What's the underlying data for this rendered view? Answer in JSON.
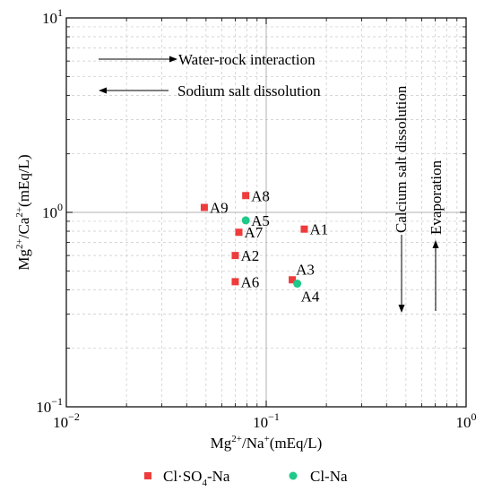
{
  "chart_data": {
    "type": "scatter",
    "x_scale": "log",
    "y_scale": "log",
    "xlim": [
      0.01,
      1
    ],
    "ylim": [
      0.1,
      10
    ],
    "x_ticks": [
      {
        "value": 0.01,
        "base": "10",
        "exp": "−2"
      },
      {
        "value": 0.1,
        "base": "10",
        "exp": "−1"
      },
      {
        "value": 1,
        "base": "10",
        "exp": "0"
      }
    ],
    "y_ticks": [
      {
        "value": 0.1,
        "base": "10",
        "exp": "−1"
      },
      {
        "value": 1,
        "base": "10",
        "exp": "0"
      },
      {
        "value": 10,
        "base": "10",
        "exp": "1"
      }
    ],
    "xlabel": {
      "pre": "Mg",
      "sup1": "2+",
      "mid": "/Na",
      "sup2": "+",
      "post": "(mEq/L)"
    },
    "ylabel": {
      "pre": "Mg",
      "sup1": "2+",
      "mid": "/Ca",
      "sup2": "2+",
      "post": "(mEq/L)"
    },
    "grid": true,
    "reference_lines": {
      "x": 0.1,
      "y": 1
    },
    "series": [
      {
        "name": "Cl·SO4-Na",
        "legend_parts": {
          "main": "Cl·SO",
          "sub": "4",
          "post": "-Na"
        },
        "marker": "square",
        "color": "#ee3b3b",
        "points": [
          {
            "label": "A1",
            "x": 0.155,
            "y": 0.82
          },
          {
            "label": "A2",
            "x": 0.07,
            "y": 0.6
          },
          {
            "label": "A3",
            "x": 0.135,
            "y": 0.45
          },
          {
            "label": "A6",
            "x": 0.07,
            "y": 0.44
          },
          {
            "label": "A7",
            "x": 0.073,
            "y": 0.79
          },
          {
            "label": "A8",
            "x": 0.079,
            "y": 1.22
          },
          {
            "label": "A9",
            "x": 0.049,
            "y": 1.06
          }
        ]
      },
      {
        "name": "Cl-Na",
        "marker": "circle",
        "color": "#1ec98a",
        "points": [
          {
            "label": "A4",
            "x": 0.143,
            "y": 0.43
          },
          {
            "label": "A5",
            "x": 0.079,
            "y": 0.91
          }
        ]
      }
    ],
    "annotations": [
      {
        "id": "water-rock",
        "text": "Water-rock interaction",
        "arrow": "right"
      },
      {
        "id": "sodium-salt",
        "text": "Sodium salt dissolution",
        "arrow": "left"
      },
      {
        "id": "calcium-salt",
        "text": "Calcium salt dissolution",
        "arrow": "down"
      },
      {
        "id": "evaporation",
        "text": "Evaporation",
        "arrow": "up"
      }
    ],
    "legend_position": "bottom"
  }
}
